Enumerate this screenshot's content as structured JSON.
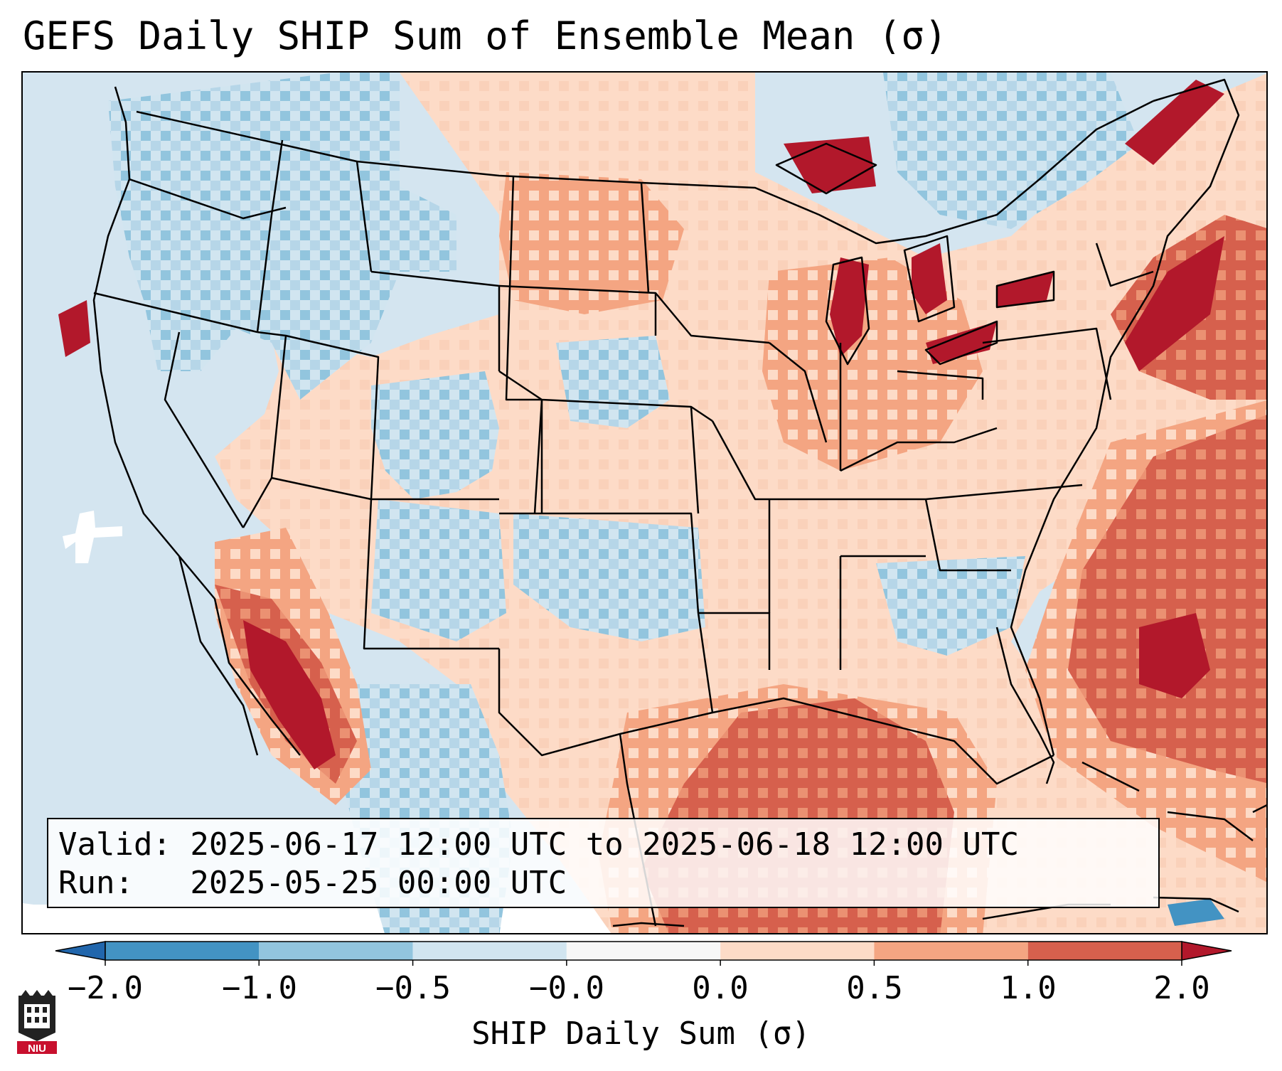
{
  "title": "GEFS Daily SHIP Sum of Ensemble Mean (σ)",
  "info": {
    "valid_line": "Valid: 2025-06-17 12:00 UTC to 2025-06-18 12:00 UTC",
    "run_line": "Run:   2025-05-25 00:00 UTC"
  },
  "colorbar": {
    "label": "SHIP Daily Sum (σ)",
    "ticks": [
      "−2.0",
      "−1.0",
      "−0.5",
      "−0.0",
      "0.0",
      "0.5",
      "1.0",
      "2.0"
    ],
    "bins": [
      {
        "range": "-2.0 to -1.0",
        "color": "#4393c3"
      },
      {
        "range": "-1.0 to -0.5",
        "color": "#92c5de"
      },
      {
        "range": "-0.5 to -0.0",
        "color": "#d1e5f0"
      },
      {
        "range": "-0.0 to 0.0",
        "color": "#f7f7f7"
      },
      {
        "range": "0.0 to 0.5",
        "color": "#fddbc7"
      },
      {
        "range": "0.5 to 1.0",
        "color": "#f4a582"
      },
      {
        "range": "1.0 to 2.0",
        "color": "#d6604d"
      }
    ],
    "under_color": "#2166ac",
    "over_color": "#b2182b"
  },
  "logo": {
    "text": "NIU",
    "colors": {
      "crest": "#222222",
      "banner": "#c8102e"
    }
  }
}
